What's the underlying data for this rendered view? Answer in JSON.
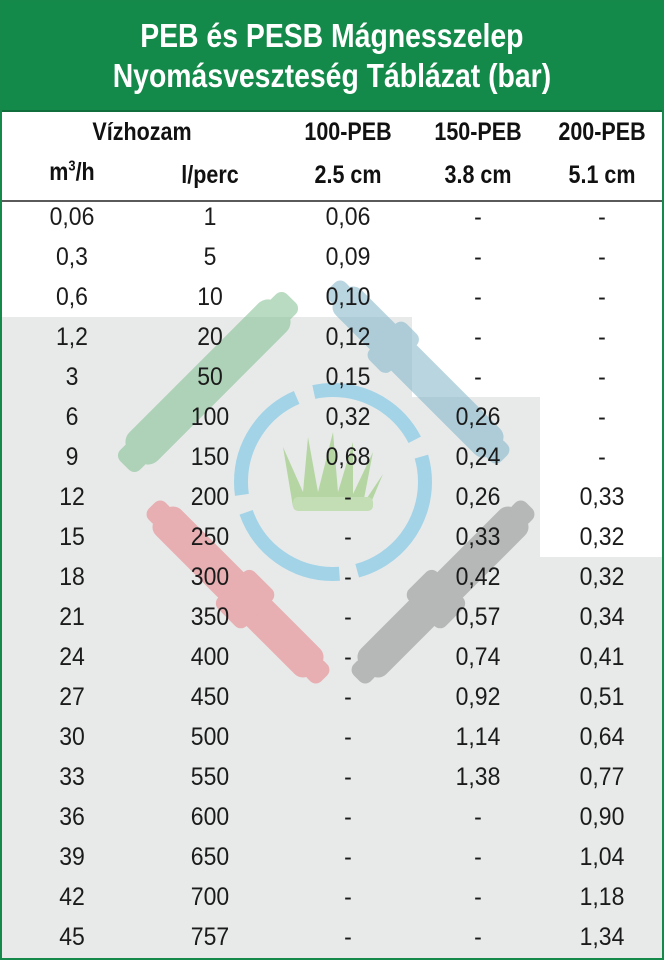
{
  "title": {
    "line1": "PEB és PESB Mágnesszelep",
    "line2": "Nyomásveszteség Táblázat (bar)"
  },
  "header": {
    "group_label": "Vízhozam",
    "col_m3h_base": "m",
    "col_m3h_sup": "3",
    "col_m3h_tail": "/h",
    "col_lperc": "l/perc",
    "models": [
      {
        "name": "100-PEB",
        "size": "2.5 cm"
      },
      {
        "name": "150-PEB",
        "size": "3.8 cm"
      },
      {
        "name": "200-PEB",
        "size": "5.1 cm"
      }
    ]
  },
  "rows": [
    [
      "0,06",
      "1",
      "0,06",
      "-",
      "-"
    ],
    [
      "0,3",
      "5",
      "0,09",
      "-",
      "-"
    ],
    [
      "0,6",
      "10",
      "0,10",
      "-",
      "-"
    ],
    [
      "1,2",
      "20",
      "0,12",
      "-",
      "-"
    ],
    [
      "3",
      "50",
      "0,15",
      "-",
      "-"
    ],
    [
      "6",
      "100",
      "0,32",
      "0,26",
      "-"
    ],
    [
      "9",
      "150",
      "0,68",
      "0,24",
      "-"
    ],
    [
      "12",
      "200",
      "-",
      "0,26",
      "0,33"
    ],
    [
      "15",
      "250",
      "-",
      "0,33",
      "0,32"
    ],
    [
      "18",
      "300",
      "-",
      "0,42",
      "0,32"
    ],
    [
      "21",
      "350",
      "-",
      "0,57",
      "0,34"
    ],
    [
      "24",
      "400",
      "-",
      "0,74",
      "0,41"
    ],
    [
      "27",
      "450",
      "-",
      "0,92",
      "0,51"
    ],
    [
      "30",
      "500",
      "-",
      "1,14",
      "0,64"
    ],
    [
      "33",
      "550",
      "-",
      "1,38",
      "0,77"
    ],
    [
      "36",
      "600",
      "-",
      "-",
      "0,90"
    ],
    [
      "39",
      "650",
      "-",
      "-",
      "1,04"
    ],
    [
      "42",
      "700",
      "-",
      "-",
      "1,18"
    ],
    [
      "45",
      "757",
      "-",
      "-",
      "1,34"
    ]
  ],
  "colors": {
    "brand_green": "#13894a",
    "shade_gray": "#e8eaea"
  },
  "icons": [
    "pipe-watermark-logo",
    "grass-icon"
  ]
}
